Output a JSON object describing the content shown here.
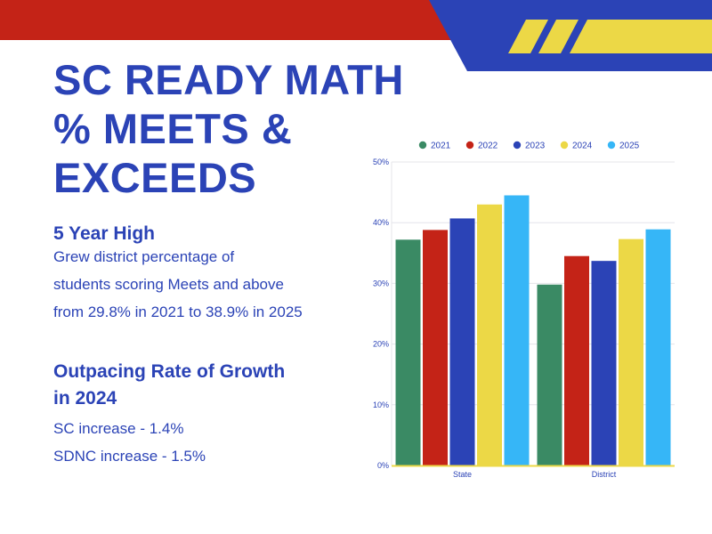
{
  "colors": {
    "blue": "#2b43b6",
    "red": "#c42317",
    "yellow": "#ecd846",
    "white": "#ffffff"
  },
  "title_lines": [
    "SC READY MATH",
    "% MEETS &",
    "EXCEEDS"
  ],
  "section1": {
    "heading": "5 Year High",
    "lines": [
      "Grew district percentage of",
      "students scoring Meets and above",
      "from 29.8% in 2021 to 38.9% in 2025"
    ]
  },
  "section2": {
    "heading_lines": [
      "Outpacing Rate of Growth",
      "in 2024"
    ],
    "lines": [
      "SC increase - 1.4%",
      "SDNC increase - 1.5%"
    ]
  },
  "chart_data": {
    "type": "bar",
    "categories": [
      "State",
      "District"
    ],
    "series": [
      {
        "name": "2021",
        "color": "#3a8a64",
        "values": [
          37.2,
          29.8
        ]
      },
      {
        "name": "2022",
        "color": "#c42317",
        "values": [
          38.8,
          34.5
        ]
      },
      {
        "name": "2023",
        "color": "#2b43b6",
        "values": [
          40.7,
          33.7
        ]
      },
      {
        "name": "2024",
        "color": "#ecd846",
        "values": [
          43.0,
          37.3
        ]
      },
      {
        "name": "2025",
        "color": "#36b6f7",
        "values": [
          44.5,
          38.9
        ]
      }
    ],
    "yticks": [
      "0%",
      "10%",
      "20%",
      "30%",
      "40%",
      "50%"
    ],
    "ylim": [
      0,
      50
    ],
    "grid": true,
    "legend": "top"
  }
}
